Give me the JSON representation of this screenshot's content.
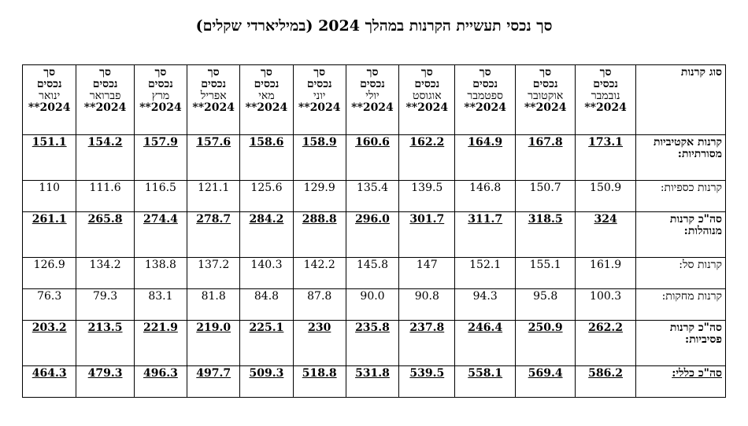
{
  "title": "סך נכסי תעשיית הקרנות במהלך 2024 (במיליארדי  שקלים)",
  "type_header": "סוג קרנות",
  "columns": [
    {
      "line1": "סך",
      "line2": "נכסים",
      "month": "נובמבר",
      "year": "2024**"
    },
    {
      "line1": "סך",
      "line2": "נכסים",
      "month": "אוקטובר",
      "year": "2024**"
    },
    {
      "line1": "סך",
      "line2": "נכסים",
      "month": "ספטמבר",
      "year": "2024**"
    },
    {
      "line1": "סך",
      "line2": "נכסים",
      "month": "אוגוסט",
      "year": "2024**"
    },
    {
      "line1": "סך",
      "line2": "נכסים",
      "month": "יולי",
      "year": "2024**"
    },
    {
      "line1": "סך",
      "line2": "נכסים",
      "month": "יוני",
      "year": "2024**"
    },
    {
      "line1": "סך",
      "line2": "נכסים",
      "month": "מאי",
      "year": "2024**"
    },
    {
      "line1": "סך",
      "line2": "נכסים",
      "month": "אפריל",
      "year": "2024**"
    },
    {
      "line1": "סך",
      "line2": "נכסים",
      "month": "מרץ",
      "year": "2024**"
    },
    {
      "line1": "סך",
      "line2": "נכסים",
      "month": "פברואר",
      "year": "2024**"
    },
    {
      "line1": "סך",
      "line2": "נכסים",
      "month": "ינואר",
      "year": "2024**"
    }
  ],
  "rows": [
    {
      "label": "קרנות אקטיביות מסורתיות:",
      "values": [
        "173.1",
        "167.8",
        "164.9",
        "162.2",
        "160.6",
        "158.9",
        "158.6",
        "157.6",
        "157.9",
        "154.2",
        "151.1"
      ]
    },
    {
      "label": "קרנות כספיות:",
      "values": [
        "150.9",
        "150.7",
        "146.8",
        "139.5",
        "135.4",
        "129.9",
        "125.6",
        "121.1",
        "116.5",
        "111.6",
        "110"
      ]
    },
    {
      "label": "סה\"כ קרנות מנוהלות:",
      "values": [
        "324",
        "318.5",
        "311.7",
        "301.7",
        "296.0",
        "288.8",
        "284.2",
        "278.7",
        "274.4",
        "265.8",
        "261.1"
      ]
    },
    {
      "label": "קרנות סל:",
      "values": [
        "161.9",
        "155.1",
        "152.1",
        "147",
        "145.8",
        "142.2",
        "140.3",
        "137.2",
        "138.8",
        "134.2",
        "126.9"
      ]
    },
    {
      "label": "קרנות מחקות:",
      "values": [
        "100.3",
        "95.8",
        "94.3",
        "90.8",
        "90.0",
        "87.8",
        "84.8",
        "81.8",
        "83.1",
        "79.3",
        "76.3"
      ]
    },
    {
      "label": "סה\"כ קרנות פסיביות:",
      "values": [
        "262.2",
        "250.9",
        "246.4",
        "237.8",
        "235.8",
        "230",
        "225.1",
        "219.0",
        "221.9",
        "213.5",
        "203.2"
      ]
    },
    {
      "label": "סה\"כ כללי:",
      "values": [
        "586.2",
        "569.4",
        "558.1",
        "539.5",
        "531.8",
        "518.8",
        "509.3",
        "497.7",
        "496.3",
        "479.3",
        "464.3"
      ]
    }
  ]
}
